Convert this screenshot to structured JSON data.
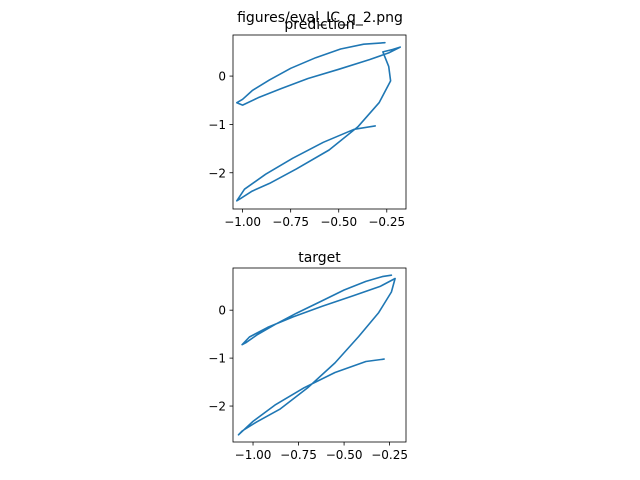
{
  "figure": {
    "suptitle": "figures/eval_IC_q_2.png"
  },
  "chart_data": [
    {
      "type": "line",
      "title": "prediction",
      "xlabel": "",
      "ylabel": "",
      "xlim": [
        -1.05,
        -0.15
      ],
      "ylim": [
        -2.75,
        0.85
      ],
      "xticks": [
        -1.0,
        -0.75,
        -0.5,
        -0.25
      ],
      "xtick_labels": [
        "−1.00",
        "−0.75",
        "−0.50",
        "−0.25"
      ],
      "yticks": [
        0,
        -1,
        -2
      ],
      "ytick_labels": [
        "0",
        "−1",
        "−2"
      ],
      "grid": false,
      "color": "#1f77b4",
      "series": [
        {
          "x": [
            -0.31,
            -0.42,
            -0.58,
            -0.74,
            -0.88,
            -0.99,
            -1.03,
            -1.01,
            -0.95,
            -0.86,
            -0.72,
            -0.55,
            -0.4,
            -0.29,
            -0.23,
            -0.24,
            -0.27,
            -0.22,
            -0.18,
            -0.24,
            -0.34,
            -0.5,
            -0.66,
            -0.8,
            -0.92,
            -1.0,
            -1.03,
            -1.0,
            -0.95,
            -0.86,
            -0.75,
            -0.62,
            -0.49,
            -0.37,
            -0.26
          ],
          "y": [
            -1.03,
            -1.1,
            -1.37,
            -1.7,
            -2.03,
            -2.34,
            -2.58,
            -2.53,
            -2.38,
            -2.22,
            -1.92,
            -1.53,
            -1.05,
            -0.55,
            -0.1,
            0.2,
            0.5,
            0.55,
            0.6,
            0.48,
            0.34,
            0.14,
            -0.05,
            -0.26,
            -0.45,
            -0.6,
            -0.55,
            -0.48,
            -0.3,
            -0.08,
            0.16,
            0.38,
            0.56,
            0.66,
            0.69
          ]
        }
      ]
    },
    {
      "type": "line",
      "title": "target",
      "xlabel": "",
      "ylabel": "",
      "xlim": [
        -1.11,
        -0.16
      ],
      "ylim": [
        -2.75,
        0.88
      ],
      "xticks": [
        -1.0,
        -0.75,
        -0.5,
        -0.25
      ],
      "xtick_labels": [
        "−1.00",
        "−0.75",
        "−0.50",
        "−0.25"
      ],
      "yticks": [
        0,
        -1,
        -2
      ],
      "ytick_labels": [
        "0",
        "−1",
        "−2"
      ],
      "grid": false,
      "color": "#1f77b4",
      "series": [
        {
          "x": [
            -0.28,
            -0.38,
            -0.55,
            -0.72,
            -0.88,
            -1.0,
            -1.08,
            -1.06,
            -0.98,
            -0.85,
            -0.7,
            -0.55,
            -0.42,
            -0.31,
            -0.24,
            -0.22,
            -0.3,
            -0.45,
            -0.62,
            -0.78,
            -0.92,
            -1.02,
            -1.06,
            -1.04,
            -0.98,
            -0.88,
            -0.76,
            -0.63,
            -0.5,
            -0.38,
            -0.29,
            -0.24
          ],
          "y": [
            -1.02,
            -1.07,
            -1.3,
            -1.62,
            -1.98,
            -2.32,
            -2.6,
            -2.52,
            -2.33,
            -2.06,
            -1.62,
            -1.1,
            -0.55,
            -0.05,
            0.38,
            0.66,
            0.5,
            0.3,
            0.08,
            -0.14,
            -0.36,
            -0.56,
            -0.72,
            -0.68,
            -0.52,
            -0.3,
            -0.06,
            0.18,
            0.42,
            0.6,
            0.7,
            0.73
          ]
        }
      ]
    }
  ]
}
